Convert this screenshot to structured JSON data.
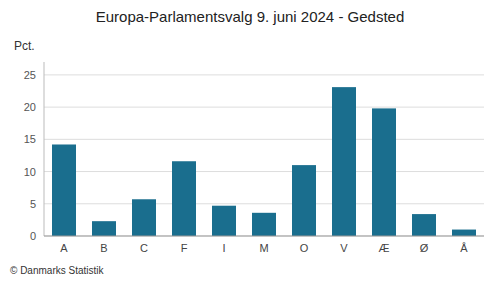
{
  "chart_data": {
    "type": "bar",
    "title": "Europa-Parlamentsvalg 9. juni 2024 - Gedsted",
    "ylabel": "Pct.",
    "annotations": [
      "© Danmarks Statistik"
    ],
    "categories": [
      "A",
      "B",
      "C",
      "F",
      "I",
      "M",
      "O",
      "V",
      "Æ",
      "Ø",
      "Å"
    ],
    "values": [
      14.2,
      2.3,
      5.7,
      11.6,
      4.7,
      3.6,
      11.0,
      23.1,
      19.8,
      3.4,
      1.0
    ],
    "color": "#1a6e8e",
    "ylim": [
      0,
      27
    ],
    "yticks": [
      0,
      5,
      10,
      15,
      20,
      25
    ],
    "grid": true
  }
}
